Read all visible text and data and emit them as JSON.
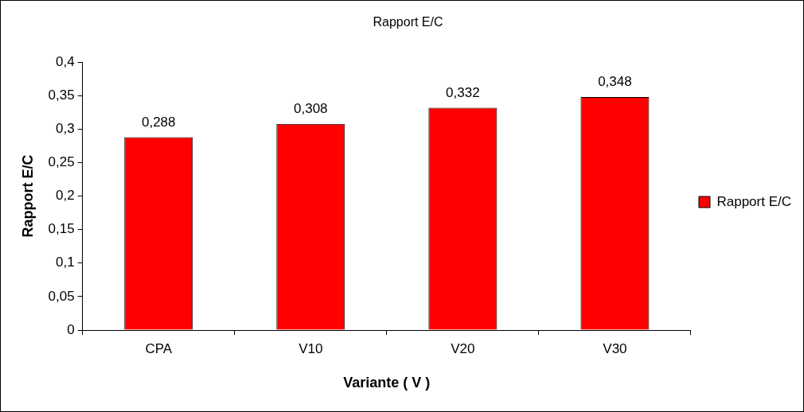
{
  "chart_data": {
    "type": "bar",
    "title": "Rapport E/C",
    "xlabel": "Variante ( V )",
    "ylabel": "Rapport E/C",
    "categories": [
      "CPA",
      "V10",
      "V20",
      "V30"
    ],
    "series": [
      {
        "name": "Rapport E/C",
        "color": "#ff0000",
        "values": [
          0.288,
          0.308,
          0.332,
          0.348
        ],
        "value_labels": [
          "0,288",
          "0,308",
          "0,332",
          "0,348"
        ]
      }
    ],
    "ylim": [
      0,
      0.4
    ],
    "yticks": [
      {
        "value": 0,
        "label": "0"
      },
      {
        "value": 0.05,
        "label": "0,05"
      },
      {
        "value": 0.1,
        "label": "0,1"
      },
      {
        "value": 0.15,
        "label": "0,15"
      },
      {
        "value": 0.2,
        "label": "0,2"
      },
      {
        "value": 0.25,
        "label": "0,25"
      },
      {
        "value": 0.3,
        "label": "0,3"
      },
      {
        "value": 0.35,
        "label": "0,35"
      },
      {
        "value": 0.4,
        "label": "0,4"
      }
    ],
    "grid": false,
    "legend": "right"
  }
}
